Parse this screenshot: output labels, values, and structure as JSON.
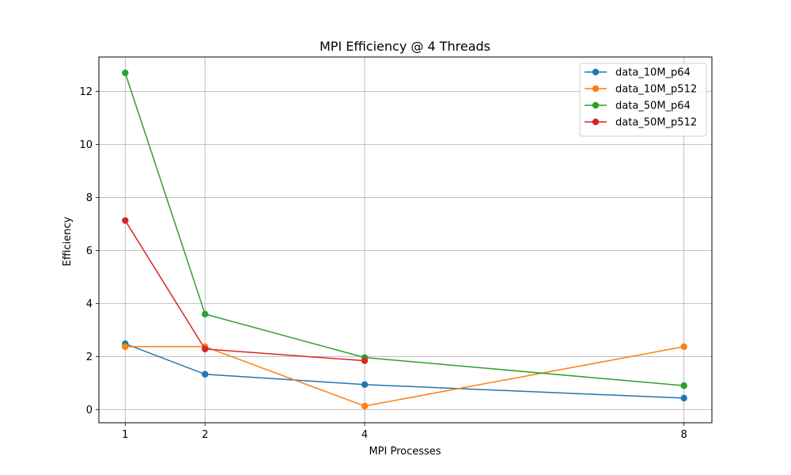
{
  "chart_data": {
    "type": "line",
    "title": "MPI Efficiency @ 4 Threads",
    "xlabel": "MPI Processes",
    "ylabel": "Efficiency",
    "x_ticks": [
      1,
      2,
      4,
      8
    ],
    "y_ticks": [
      0,
      2,
      4,
      6,
      8,
      10,
      12
    ],
    "xlim": [
      0.67,
      8.35
    ],
    "ylim": [
      -0.5,
      13.3
    ],
    "grid": true,
    "legend_position": "top-right",
    "series": [
      {
        "name": "data_10M_p64",
        "color": "#1f77b4",
        "x": [
          1,
          2,
          4,
          8
        ],
        "values": [
          2.48,
          1.33,
          0.94,
          0.43
        ]
      },
      {
        "name": "data_10M_p512",
        "color": "#ff7f0e",
        "x": [
          1,
          2,
          4,
          8
        ],
        "values": [
          2.37,
          2.37,
          0.13,
          2.37
        ]
      },
      {
        "name": "data_50M_p64",
        "color": "#2ca02c",
        "x": [
          1,
          2,
          4,
          8
        ],
        "values": [
          12.7,
          3.6,
          1.96,
          0.9
        ]
      },
      {
        "name": "data_50M_p512",
        "color": "#d62728",
        "x": [
          1,
          2,
          4
        ],
        "values": [
          7.13,
          2.28,
          1.84
        ]
      }
    ]
  }
}
